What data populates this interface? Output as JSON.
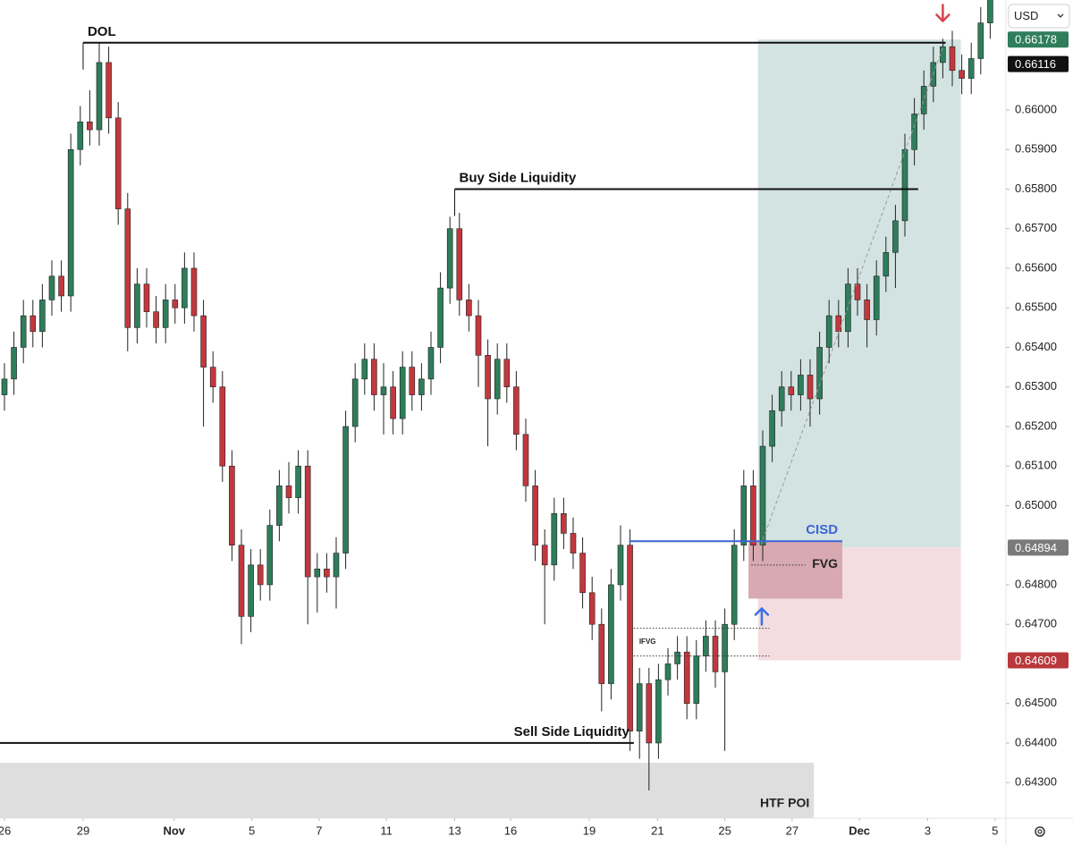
{
  "chart_data": {
    "type": "candlestick",
    "currency": "USD",
    "up_color": "#2e7d5b",
    "down_color": "#c2383e",
    "xlim": [
      -0.47,
      105.66
    ],
    "ylim": [
      0.6421,
      0.66278
    ],
    "xticks": [
      {
        "value": 0,
        "label": "26"
      },
      {
        "value": 8.3,
        "label": "29"
      },
      {
        "value": 17.9,
        "label": "Nov"
      },
      {
        "value": 26.1,
        "label": "5"
      },
      {
        "value": 33.2,
        "label": "7"
      },
      {
        "value": 40.3,
        "label": "11"
      },
      {
        "value": 47.5,
        "label": "13"
      },
      {
        "value": 53.4,
        "label": "16"
      },
      {
        "value": 61.7,
        "label": "19"
      },
      {
        "value": 68.9,
        "label": "21"
      },
      {
        "value": 76,
        "label": "25"
      },
      {
        "value": 83.1,
        "label": "27"
      },
      {
        "value": 90.2,
        "label": "Dec"
      },
      {
        "value": 97.4,
        "label": "3"
      },
      {
        "value": 104.5,
        "label": "5"
      }
    ],
    "yticks": [
      {
        "value": 0.66,
        "label": "0.66000"
      },
      {
        "value": 0.659,
        "label": "0.65900"
      },
      {
        "value": 0.658,
        "label": "0.65800"
      },
      {
        "value": 0.657,
        "label": "0.65700"
      },
      {
        "value": 0.656,
        "label": "0.65600"
      },
      {
        "value": 0.655,
        "label": "0.65500"
      },
      {
        "value": 0.654,
        "label": "0.65400"
      },
      {
        "value": 0.653,
        "label": "0.65300"
      },
      {
        "value": 0.652,
        "label": "0.65200"
      },
      {
        "value": 0.651,
        "label": "0.65100"
      },
      {
        "value": 0.65,
        "label": "0.65000"
      },
      {
        "value": 0.648,
        "label": "0.64800"
      },
      {
        "value": 0.647,
        "label": "0.64700"
      },
      {
        "value": 0.645,
        "label": "0.64500"
      },
      {
        "value": 0.644,
        "label": "0.64400"
      },
      {
        "value": 0.643,
        "label": "0.64300"
      }
    ],
    "open": [
      0.6528,
      0.6532,
      0.654,
      0.6548,
      0.6544,
      0.6552,
      0.6558,
      0.6553,
      0.659,
      0.6597,
      0.6595,
      0.6612,
      0.6598,
      0.6575,
      0.6545,
      0.6556,
      0.6549,
      0.6545,
      0.6552,
      0.655,
      0.656,
      0.6548,
      0.6535,
      0.653,
      0.651,
      0.649,
      0.6472,
      0.6485,
      0.648,
      0.6495,
      0.6505,
      0.6502,
      0.651,
      0.6482,
      0.6484,
      0.6482,
      0.6488,
      0.652,
      0.6532,
      0.6537,
      0.6528,
      0.653,
      0.6522,
      0.6535,
      0.6528,
      0.6532,
      0.654,
      0.6555,
      0.657,
      0.6552,
      0.6548,
      0.6538,
      0.6527,
      0.6537,
      0.653,
      0.6518,
      0.6505,
      0.649,
      0.6485,
      0.6498,
      0.6493,
      0.6488,
      0.6478,
      0.647,
      0.6455,
      0.648,
      0.649,
      0.6443,
      0.6455,
      0.644,
      0.6456,
      0.646,
      0.6463,
      0.645,
      0.6462,
      0.6467,
      0.6458,
      0.647,
      0.649,
      0.6505,
      0.649,
      0.6515,
      0.6524,
      0.653,
      0.6528,
      0.6533,
      0.6527,
      0.654,
      0.6548,
      0.6544,
      0.6556,
      0.6552,
      0.6547,
      0.6558,
      0.6564,
      0.6572,
      0.659,
      0.6599,
      0.6606,
      0.6612,
      0.6616,
      0.661,
      0.6608,
      0.6613,
      0.6622
    ],
    "high": [
      0.6536,
      0.6544,
      0.6552,
      0.6552,
      0.6556,
      0.6562,
      0.6562,
      0.6594,
      0.6601,
      0.6605,
      0.6617,
      0.6616,
      0.6602,
      0.6579,
      0.656,
      0.656,
      0.6553,
      0.6556,
      0.6556,
      0.6564,
      0.6564,
      0.6552,
      0.6539,
      0.6534,
      0.6514,
      0.6494,
      0.6489,
      0.6489,
      0.6499,
      0.6509,
      0.6511,
      0.6514,
      0.6514,
      0.6488,
      0.6488,
      0.6492,
      0.6524,
      0.6536,
      0.6541,
      0.6541,
      0.6536,
      0.6534,
      0.6539,
      0.6539,
      0.6536,
      0.6544,
      0.6559,
      0.6573,
      0.6574,
      0.6556,
      0.6552,
      0.6542,
      0.6541,
      0.6541,
      0.6534,
      0.6522,
      0.6509,
      0.6494,
      0.6502,
      0.6502,
      0.6497,
      0.6492,
      0.6482,
      0.6474,
      0.6484,
      0.6495,
      0.6494,
      0.6459,
      0.6459,
      0.646,
      0.6464,
      0.6467,
      0.6467,
      0.6466,
      0.6471,
      0.6471,
      0.6474,
      0.6494,
      0.6509,
      0.6509,
      0.6519,
      0.6528,
      0.6534,
      0.6534,
      0.6537,
      0.6537,
      0.6544,
      0.6552,
      0.6552,
      0.656,
      0.656,
      0.6556,
      0.6562,
      0.6568,
      0.6576,
      0.6594,
      0.6603,
      0.661,
      0.6616,
      0.6618,
      0.662,
      0.6614,
      0.6617,
      0.6626,
      0.6632
    ],
    "low": [
      0.6524,
      0.6528,
      0.6536,
      0.654,
      0.654,
      0.6548,
      0.6549,
      0.6549,
      0.6586,
      0.6591,
      0.6591,
      0.6594,
      0.6571,
      0.6539,
      0.6541,
      0.6545,
      0.6541,
      0.6541,
      0.6546,
      0.6546,
      0.6544,
      0.652,
      0.6526,
      0.6506,
      0.6486,
      0.6465,
      0.6468,
      0.6476,
      0.6476,
      0.6491,
      0.6498,
      0.6498,
      0.647,
      0.6473,
      0.6478,
      0.6474,
      0.6484,
      0.6516,
      0.6528,
      0.6524,
      0.6518,
      0.6518,
      0.6518,
      0.6524,
      0.6524,
      0.6528,
      0.6536,
      0.6551,
      0.6548,
      0.6544,
      0.653,
      0.6515,
      0.6523,
      0.6526,
      0.6514,
      0.6501,
      0.6486,
      0.647,
      0.6481,
      0.6489,
      0.6484,
      0.6474,
      0.6466,
      0.6448,
      0.6451,
      0.6476,
      0.6438,
      0.6436,
      0.6428,
      0.6436,
      0.6452,
      0.6456,
      0.6446,
      0.6446,
      0.6458,
      0.6454,
      0.6438,
      0.6466,
      0.6486,
      0.6486,
      0.6486,
      0.6511,
      0.652,
      0.6524,
      0.6524,
      0.652,
      0.6523,
      0.6536,
      0.654,
      0.654,
      0.6548,
      0.654,
      0.6543,
      0.6554,
      0.6555,
      0.6568,
      0.6586,
      0.6595,
      0.6602,
      0.6608,
      0.6606,
      0.6604,
      0.6604,
      0.6609,
      0.6618
    ],
    "close": [
      0.6532,
      0.654,
      0.6548,
      0.6544,
      0.6552,
      0.6558,
      0.6553,
      0.659,
      0.6597,
      0.6595,
      0.6612,
      0.6598,
      0.6575,
      0.6545,
      0.6556,
      0.6549,
      0.6545,
      0.6552,
      0.655,
      0.656,
      0.6548,
      0.6535,
      0.653,
      0.651,
      0.649,
      0.6472,
      0.6485,
      0.648,
      0.6495,
      0.6505,
      0.6502,
      0.651,
      0.6482,
      0.6484,
      0.6482,
      0.6488,
      0.652,
      0.6532,
      0.6537,
      0.6528,
      0.653,
      0.6522,
      0.6535,
      0.6528,
      0.6532,
      0.654,
      0.6555,
      0.657,
      0.6552,
      0.6548,
      0.6538,
      0.6527,
      0.6537,
      0.653,
      0.6518,
      0.6505,
      0.649,
      0.6485,
      0.6498,
      0.6493,
      0.6488,
      0.6478,
      0.647,
      0.6455,
      0.648,
      0.649,
      0.6443,
      0.6455,
      0.644,
      0.6456,
      0.646,
      0.6463,
      0.645,
      0.6462,
      0.6467,
      0.6458,
      0.647,
      0.649,
      0.6505,
      0.649,
      0.6515,
      0.6524,
      0.653,
      0.6528,
      0.6533,
      0.6527,
      0.654,
      0.6548,
      0.6544,
      0.6556,
      0.6552,
      0.6547,
      0.6558,
      0.6564,
      0.6572,
      0.659,
      0.6599,
      0.6606,
      0.6612,
      0.6616,
      0.661,
      0.6608,
      0.6613,
      0.6622,
      0.6628
    ],
    "zones": [
      {
        "top": 0.66178,
        "bottom": 0.64894,
        "from": 79.5,
        "to": 100.9,
        "color": "#d3e3e2"
      },
      {
        "top": 0.64894,
        "bottom": 0.64609,
        "from": 79.5,
        "to": 100.9,
        "color": "#f3dde0"
      },
      {
        "label": "FVG",
        "top": 0.6491,
        "bottom": 0.64765,
        "from": 78.5,
        "to": 88.4,
        "color": "#d8a9b0"
      },
      {
        "label": "HTF POI",
        "top": 0.6435,
        "bottom": 0.6421,
        "from": -0.47,
        "to": 85.4,
        "color": "#dedede"
      }
    ],
    "levels": [
      {
        "label": "DOL",
        "price": 0.6617,
        "from": 8.3,
        "to": 99.3,
        "color": "#111111",
        "label_side": "start"
      },
      {
        "label": "Buy Side Liquidity",
        "price": 0.658,
        "from": 47.5,
        "to": 96.4,
        "color": "#111111",
        "label_side": "start"
      },
      {
        "label": "Sell Side Liquidity",
        "price": 0.644,
        "from": -0.47,
        "to": 66.4,
        "color": "#111111",
        "label_side": "end"
      },
      {
        "label": "CISD",
        "price": 0.6491,
        "from": 65.9,
        "to": 88.4,
        "color": "#3d64d8",
        "label_side": "end"
      }
    ],
    "dotted": [
      {
        "label": "IFVG",
        "top": 0.6469,
        "bottom": 0.6462,
        "from": 66.4,
        "to": 80.7
      },
      {
        "price": 0.6485,
        "from": 78.8,
        "to": 84.5
      }
    ],
    "trend_line": {
      "from": [
        79.8,
        0.649
      ],
      "to": [
        99.2,
        0.6617
      ]
    },
    "arrows": [
      {
        "direction": "up",
        "at": 79.9,
        "price": 0.6474,
        "color": "#3d6fe8"
      },
      {
        "direction": "down",
        "at": 99.0,
        "price": 0.66225,
        "color": "#d9434b"
      }
    ],
    "price_labels": [
      {
        "value": 0.66178,
        "label": "0.66178",
        "color": "#2e7d5b"
      },
      {
        "value": 0.66116,
        "label": "0.66116",
        "color": "#111111"
      },
      {
        "value": 0.64894,
        "label": "0.64894",
        "color": "#7a7a7a"
      },
      {
        "value": 0.64609,
        "label": "0.64609",
        "color": "#b8383c"
      }
    ]
  }
}
